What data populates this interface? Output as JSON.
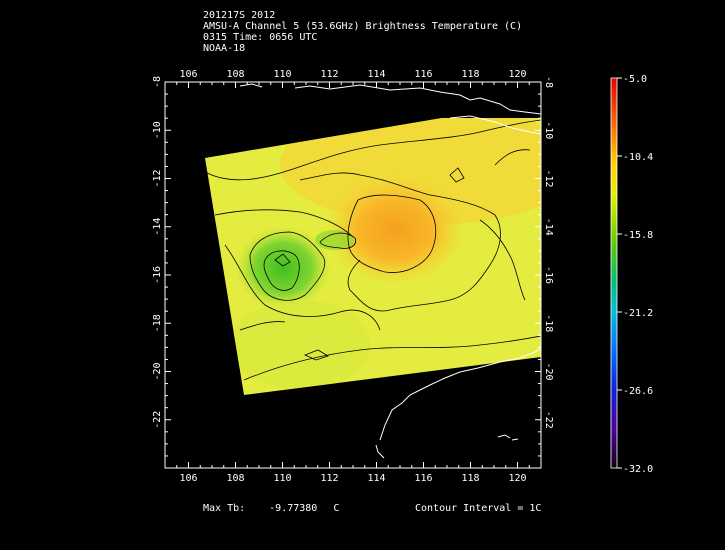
{
  "title": {
    "line1": "201217S 2012",
    "line2": "AMSU-A Channel 5 (53.6GHz) Brightness Temperature (C)",
    "line3": "0315 Time: 0656 UTC",
    "line4": "NOAA-18"
  },
  "map": {
    "lon_range": [
      105,
      121
    ],
    "lat_range": [
      -24,
      -8
    ],
    "lon_ticks": [
      "106",
      "108",
      "110",
      "112",
      "114",
      "116",
      "118",
      "120"
    ],
    "lat_ticks": [
      "-8",
      "-10",
      "-12",
      "-14",
      "-16",
      "-18",
      "-20",
      "-22"
    ]
  },
  "colorbar": {
    "labels": [
      "-5.0",
      "-10.4",
      "-15.8",
      "-21.2",
      "-26.6",
      "-32.0"
    ],
    "min": -32.0,
    "max": -5.0
  },
  "footer": {
    "max_label": "Max Tb:",
    "max_value": "-9.77380",
    "max_unit": "C",
    "contour_label": "Contour Interval = 1C"
  }
}
